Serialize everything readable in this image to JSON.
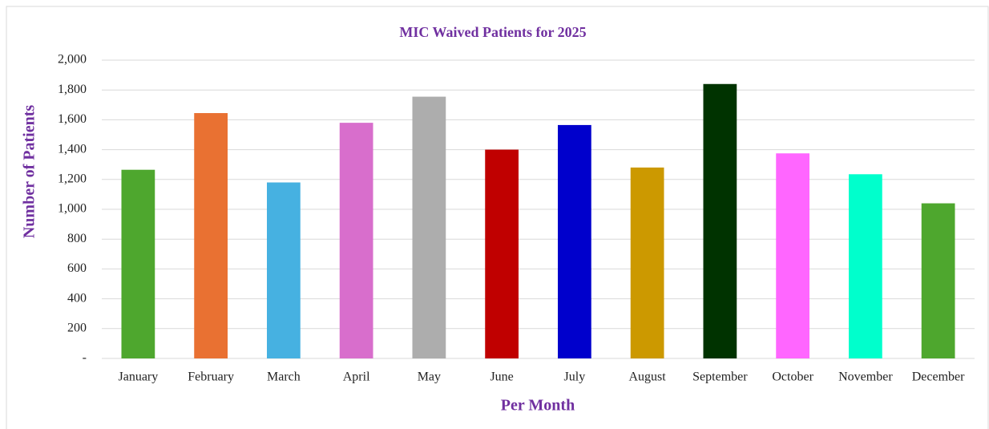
{
  "chart_data": {
    "type": "bar",
    "title": "MIC Waived Patients for 2025",
    "x_label": "Per Month",
    "y_label": "Number of Patients",
    "categories": [
      "January",
      "February",
      "March",
      "April",
      "May",
      "June",
      "July",
      "August",
      "September",
      "October",
      "November",
      "December"
    ],
    "values": [
      1265,
      1645,
      1180,
      1580,
      1755,
      1400,
      1565,
      1280,
      1840,
      1375,
      1235,
      1040
    ],
    "colors": [
      "#4ea72e",
      "#e97132",
      "#46b1e1",
      "#d86ecc",
      "#adadad",
      "#c00000",
      "#0000cc",
      "#cc9900",
      "#003300",
      "#ff66ff",
      "#00ffcc",
      "#4ea72e"
    ],
    "ylim": [
      0,
      2000
    ],
    "yticks": [
      {
        "value": 0,
        "label": "-"
      },
      200,
      400,
      600,
      800,
      {
        "value": 1000,
        "label": "1,000"
      },
      {
        "value": 1200,
        "label": "1,200"
      },
      {
        "value": 1400,
        "label": "1,400"
      },
      {
        "value": 1600,
        "label": "1,600"
      },
      {
        "value": 1800,
        "label": "1,800"
      },
      {
        "value": 2000,
        "label": "2,000"
      }
    ],
    "grid": true
  }
}
